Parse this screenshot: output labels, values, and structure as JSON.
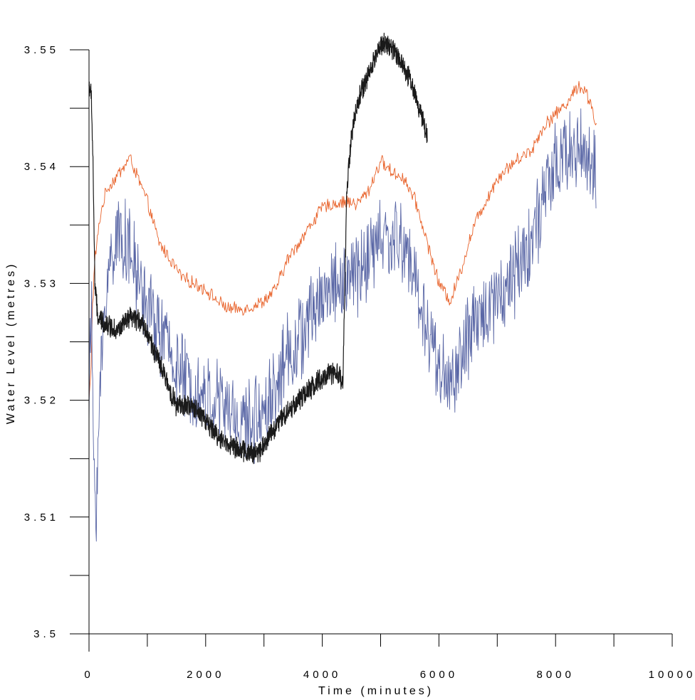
{
  "chart_data": {
    "type": "line",
    "xlabel": "Time (minutes)",
    "ylabel": "Water Level (metres)",
    "xlim": [
      0,
      10000
    ],
    "ylim": [
      3.5,
      3.55
    ],
    "x_ticks": [
      0,
      2000,
      4000,
      6000,
      8000,
      10000
    ],
    "x_tick_labels": [
      "0",
      "2000",
      "4000",
      "6000",
      "8000",
      "10000"
    ],
    "y_ticks": [
      3.5,
      3.51,
      3.52,
      3.53,
      3.54,
      3.55
    ],
    "y_tick_labels": [
      "3.5",
      "3.51",
      "3.52",
      "3.53",
      "3.54",
      "3.55"
    ],
    "grid": false,
    "legend": "none",
    "series": [
      {
        "color": "#e8622a",
        "noise": 0.0005,
        "points": [
          [
            0,
            3.52
          ],
          [
            30,
            3.522
          ],
          [
            60,
            3.528
          ],
          [
            100,
            3.532
          ],
          [
            200,
            3.536
          ],
          [
            300,
            3.538
          ],
          [
            450,
            3.539
          ],
          [
            600,
            3.54
          ],
          [
            700,
            3.5408
          ],
          [
            800,
            3.5395
          ],
          [
            1000,
            3.537
          ],
          [
            1200,
            3.5335
          ],
          [
            1400,
            3.532
          ],
          [
            1600,
            3.5305
          ],
          [
            1800,
            3.53
          ],
          [
            2000,
            3.5295
          ],
          [
            2200,
            3.5285
          ],
          [
            2400,
            3.5278
          ],
          [
            2600,
            3.5278
          ],
          [
            2800,
            3.528
          ],
          [
            3000,
            3.5285
          ],
          [
            3200,
            3.5295
          ],
          [
            3400,
            3.532
          ],
          [
            3600,
            3.5335
          ],
          [
            3800,
            3.535
          ],
          [
            4000,
            3.5365
          ],
          [
            4200,
            3.5368
          ],
          [
            4400,
            3.537
          ],
          [
            4600,
            3.5368
          ],
          [
            4800,
            3.538
          ],
          [
            5000,
            3.5405
          ],
          [
            5200,
            3.5395
          ],
          [
            5400,
            3.539
          ],
          [
            5600,
            3.537
          ],
          [
            5800,
            3.5335
          ],
          [
            6000,
            3.53
          ],
          [
            6200,
            3.5285
          ],
          [
            6400,
            3.5315
          ],
          [
            6600,
            3.535
          ],
          [
            6800,
            3.537
          ],
          [
            7000,
            3.539
          ],
          [
            7200,
            3.54
          ],
          [
            7400,
            3.5408
          ],
          [
            7600,
            3.5415
          ],
          [
            7800,
            3.5435
          ],
          [
            8000,
            3.5445
          ],
          [
            8200,
            3.5455
          ],
          [
            8400,
            3.547
          ],
          [
            8500,
            3.5465
          ],
          [
            8600,
            3.5455
          ],
          [
            8700,
            3.5435
          ]
        ]
      },
      {
        "color": "#5a67a6",
        "noise": 0.0032,
        "points": [
          [
            0,
            3.52
          ],
          [
            40,
            3.528
          ],
          [
            80,
            3.515
          ],
          [
            120,
            3.511
          ],
          [
            200,
            3.522
          ],
          [
            300,
            3.53
          ],
          [
            450,
            3.534
          ],
          [
            600,
            3.534
          ],
          [
            800,
            3.531
          ],
          [
            1000,
            3.528
          ],
          [
            1200,
            3.526
          ],
          [
            1400,
            3.524
          ],
          [
            1600,
            3.522
          ],
          [
            1800,
            3.521
          ],
          [
            2000,
            3.52
          ],
          [
            2200,
            3.52
          ],
          [
            2400,
            3.519
          ],
          [
            2600,
            3.518
          ],
          [
            2800,
            3.518
          ],
          [
            3000,
            3.5195
          ],
          [
            3200,
            3.521
          ],
          [
            3400,
            3.524
          ],
          [
            3600,
            3.525
          ],
          [
            3800,
            3.527
          ],
          [
            4000,
            3.529
          ],
          [
            4200,
            3.53
          ],
          [
            4400,
            3.53
          ],
          [
            4600,
            3.531
          ],
          [
            4800,
            3.532
          ],
          [
            5000,
            3.534
          ],
          [
            5200,
            3.5335
          ],
          [
            5400,
            3.5335
          ],
          [
            5600,
            3.53
          ],
          [
            5800,
            3.526
          ],
          [
            6000,
            3.523
          ],
          [
            6200,
            3.521
          ],
          [
            6400,
            3.524
          ],
          [
            6600,
            3.526
          ],
          [
            6800,
            3.528
          ],
          [
            7000,
            3.529
          ],
          [
            7200,
            3.53
          ],
          [
            7400,
            3.532
          ],
          [
            7600,
            3.534
          ],
          [
            7800,
            3.537
          ],
          [
            8000,
            3.54
          ],
          [
            8200,
            3.541
          ],
          [
            8400,
            3.542
          ],
          [
            8600,
            3.54
          ],
          [
            8700,
            3.5385
          ]
        ]
      },
      {
        "color": "#1a1a1a",
        "noise": 0.0008,
        "points": [
          [
            0,
            3.547
          ],
          [
            40,
            3.546
          ],
          [
            70,
            3.54
          ],
          [
            100,
            3.53
          ],
          [
            150,
            3.527
          ],
          [
            300,
            3.5265
          ],
          [
            500,
            3.526
          ],
          [
            700,
            3.527
          ],
          [
            900,
            3.5268
          ],
          [
            1100,
            3.5245
          ],
          [
            1300,
            3.522
          ],
          [
            1500,
            3.5195
          ],
          [
            1700,
            3.5195
          ],
          [
            1900,
            3.519
          ],
          [
            2100,
            3.5175
          ],
          [
            2300,
            3.5165
          ],
          [
            2500,
            3.516
          ],
          [
            2700,
            3.5155
          ],
          [
            2900,
            3.5155
          ],
          [
            3100,
            3.517
          ],
          [
            3300,
            3.5185
          ],
          [
            3500,
            3.5195
          ],
          [
            3700,
            3.5205
          ],
          [
            3900,
            3.5215
          ],
          [
            4100,
            3.5222
          ],
          [
            4300,
            3.5222
          ],
          [
            4350,
            3.521
          ],
          [
            4380,
            3.528
          ],
          [
            4420,
            3.538
          ],
          [
            4500,
            3.5425
          ],
          [
            4600,
            3.5455
          ],
          [
            4800,
            3.548
          ],
          [
            5000,
            3.5505
          ],
          [
            5100,
            3.5505
          ],
          [
            5300,
            3.5495
          ],
          [
            5500,
            3.5475
          ],
          [
            5700,
            3.5445
          ],
          [
            5800,
            3.5425
          ]
        ]
      }
    ]
  }
}
